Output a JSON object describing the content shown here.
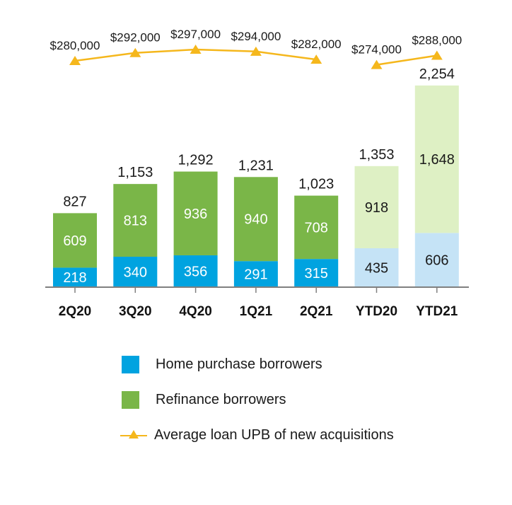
{
  "chart_data": {
    "type": "bar",
    "stacked": true,
    "categories": [
      "2Q20",
      "3Q20",
      "4Q20",
      "1Q21",
      "2Q21",
      "YTD20",
      "YTD21"
    ],
    "series": [
      {
        "name": "Home purchase borrowers",
        "values": [
          218,
          340,
          356,
          291,
          315,
          435,
          606
        ]
      },
      {
        "name": "Refinance borrowers",
        "values": [
          609,
          813,
          936,
          940,
          708,
          918,
          1648
        ]
      }
    ],
    "totals": [
      827,
      1153,
      1292,
      1231,
      1023,
      1353,
      2254
    ],
    "line_series": {
      "name": "Average loan UPB of new acquisitions",
      "values": [
        280000,
        292000,
        297000,
        294000,
        282000,
        274000,
        288000
      ],
      "labels": [
        "$280,000",
        "$292,000",
        "$297,000",
        "$294,000",
        "$282,000",
        "$274,000",
        "$288,000"
      ],
      "segments": [
        [
          0,
          4
        ],
        [
          5,
          6
        ]
      ]
    },
    "colors": {
      "purchase": "#00a3e0",
      "refinance": "#7ab648",
      "purchase_light": "#c5e3f6",
      "refinance_light": "#def0c4",
      "line": "#f5b71c",
      "axis": "#808080"
    },
    "highlight_categories": [
      "YTD20",
      "YTD21"
    ],
    "legend_position": "bottom"
  }
}
